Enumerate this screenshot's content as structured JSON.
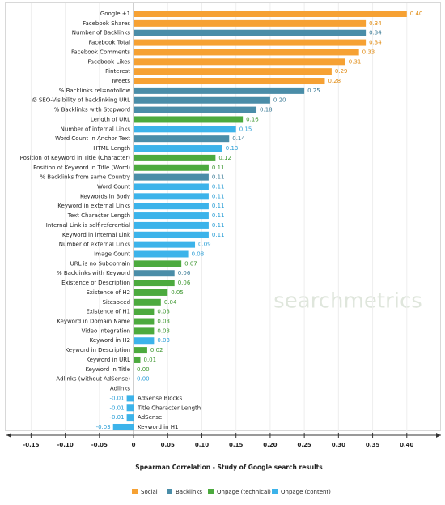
{
  "chart_data": {
    "type": "bar",
    "orientation": "horizontal",
    "watermark": "searchmetrics",
    "xlabel": "Spearman Correlation - Study of Google search results",
    "xlim": [
      -0.186,
      0.45
    ],
    "xticks": [
      -0.15,
      {
        "value": -0.1,
        "label": "-0.10"
      },
      -0.05,
      0,
      0.05,
      {
        "value": 0.1,
        "label": "0.10"
      },
      0.15,
      {
        "value": 0.2,
        "label": "0.20"
      },
      0.25,
      {
        "value": 0.3,
        "label": "0.30"
      },
      0.35,
      {
        "value": 0.4,
        "label": "0.40"
      }
    ],
    "grid": true,
    "categories": [
      "Google +1",
      "Facebook Shares",
      "Number of Backlinks",
      "Facebook Total",
      "Facebook Comments",
      "Facebook Likes",
      "Pinterest",
      "Tweets",
      "% Backlinks rel=nofollow",
      "Ø SEO-Visibility of backlinking URL",
      "% Backlinks with Stopword",
      "Length of URL",
      "Number of internal Links",
      "Word Count in Anchor Text",
      "HTML Length",
      "Position of Keyword in Title (Character)",
      "Position of Keyword in Title (Word)",
      "% Backlinks from same Country",
      "Word Count",
      "Keywords in Body",
      "Keyword in external Links",
      "Text Character Length",
      "Internal Link is self-referential",
      "Keyword in internal Link",
      "Number of external Links",
      "Image Count",
      "URL is no Subdomain",
      "% Backlinks with Keyword",
      "Existence of Description",
      "Existence of H2",
      "Sitespeed",
      "Existence of H1",
      "Keyword in Domain Name",
      "Video Integration",
      "Keyword in H2",
      "Keyword in Description",
      "Keyword in URL",
      "Keyword in Title",
      "Adlinks (without AdSense)",
      "Adlinks",
      "AdSense Blocks",
      "Title Character Length",
      "AdSense",
      "Keyword in H1"
    ],
    "series": [
      {
        "name": "Social",
        "color": "#f6a133",
        "label_color": "#e08a10",
        "values": [
          0.4,
          0.34,
          null,
          0.34,
          0.33,
          0.31,
          0.29,
          0.28,
          null,
          null,
          null,
          null,
          null,
          null,
          null,
          null,
          null,
          null,
          null,
          null,
          null,
          null,
          null,
          null,
          null,
          null,
          null,
          null,
          null,
          null,
          null,
          null,
          null,
          null,
          null,
          null,
          null,
          null,
          null,
          null,
          null,
          null,
          null,
          null
        ],
        "value_labels": [
          "0.40",
          "0.34",
          null,
          "0.34",
          "0.33",
          "0.31",
          "0.29",
          "0.28",
          null,
          null,
          null,
          null,
          null,
          null,
          null,
          null,
          null,
          null,
          null,
          null,
          null,
          null,
          null,
          null,
          null,
          null,
          null,
          null,
          null,
          null,
          null,
          null,
          null,
          null,
          null,
          null,
          null,
          null,
          null,
          null,
          null,
          null,
          null,
          null
        ]
      },
      {
        "name": "Backlinks",
        "color": "#4a8da8",
        "label_color": "#3a7a95",
        "values": [
          null,
          null,
          0.34,
          null,
          null,
          null,
          null,
          null,
          0.25,
          0.2,
          0.18,
          null,
          null,
          0.14,
          null,
          null,
          null,
          0.11,
          null,
          null,
          null,
          null,
          null,
          null,
          null,
          null,
          null,
          0.06,
          null,
          null,
          null,
          null,
          null,
          null,
          null,
          null,
          null,
          null,
          null,
          null,
          null,
          null,
          null,
          null
        ],
        "value_labels": [
          null,
          null,
          "0.34",
          null,
          null,
          null,
          null,
          null,
          "0.25",
          "0.20",
          "0.18",
          null,
          null,
          "0.14",
          null,
          null,
          null,
          "0.11",
          null,
          null,
          null,
          null,
          null,
          null,
          null,
          null,
          null,
          "0.06",
          null,
          null,
          null,
          null,
          null,
          null,
          null,
          null,
          null,
          null,
          null,
          null,
          null,
          null,
          null,
          null
        ]
      },
      {
        "name": "Onpage (technical)",
        "color": "#4caa3e",
        "label_color": "#3c962e",
        "values": [
          null,
          null,
          null,
          null,
          null,
          null,
          null,
          null,
          null,
          null,
          null,
          0.16,
          null,
          null,
          null,
          0.12,
          0.11,
          null,
          null,
          null,
          null,
          null,
          null,
          null,
          null,
          null,
          0.07,
          null,
          0.06,
          0.05,
          0.04,
          0.03,
          0.03,
          0.03,
          null,
          0.02,
          0.01,
          0,
          null,
          null,
          null,
          null,
          null,
          null
        ],
        "value_labels": [
          null,
          null,
          null,
          null,
          null,
          null,
          null,
          null,
          null,
          null,
          null,
          "0.16",
          null,
          null,
          null,
          "0.12",
          "0.11",
          null,
          null,
          null,
          null,
          null,
          null,
          null,
          null,
          null,
          "0.07",
          null,
          "0.06",
          "0.05",
          "0.04",
          "0.03",
          "0.03",
          "0.03",
          null,
          "0.02",
          "0.01",
          "0.00",
          null,
          null,
          null,
          null,
          null,
          null
        ]
      },
      {
        "name": "Onpage (content)",
        "color": "#3cb3ea",
        "label_color": "#2a9ed6",
        "values": [
          null,
          null,
          null,
          null,
          null,
          null,
          null,
          null,
          null,
          null,
          null,
          null,
          0.15,
          null,
          0.13,
          null,
          null,
          null,
          0.11,
          0.11,
          0.11,
          0.11,
          0.11,
          0.11,
          0.09,
          0.08,
          null,
          null,
          null,
          null,
          null,
          null,
          null,
          null,
          0.03,
          null,
          null,
          null,
          0,
          0,
          -0.01,
          -0.01,
          -0.01,
          -0.03
        ],
        "value_labels": [
          null,
          null,
          null,
          null,
          null,
          null,
          null,
          null,
          null,
          null,
          null,
          null,
          "0.15",
          null,
          "0.13",
          null,
          null,
          null,
          "0.11",
          "0.11",
          "0.11",
          "0.11",
          "0.11",
          "0.11",
          "0.09",
          "0.08",
          null,
          null,
          null,
          null,
          null,
          null,
          null,
          null,
          "0.03",
          null,
          null,
          null,
          "0.00",
          null,
          "-0.01",
          "-0.01",
          "-0.01",
          "-0.03"
        ]
      }
    ]
  }
}
